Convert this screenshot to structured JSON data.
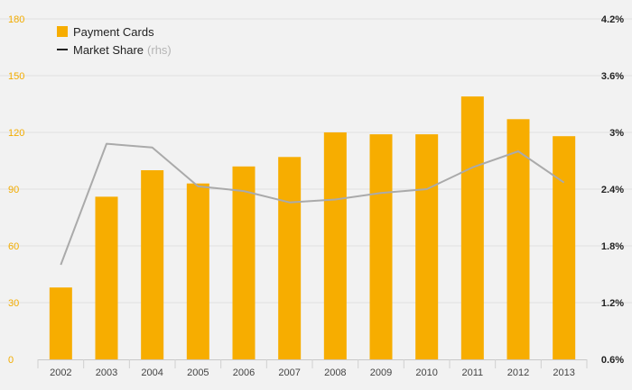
{
  "chart_data": {
    "type": "bar",
    "categories": [
      "2002",
      "2003",
      "2004",
      "2005",
      "2006",
      "2007",
      "2008",
      "2009",
      "2010",
      "2011",
      "2012",
      "2013"
    ],
    "series": [
      {
        "name": "Payment Cards",
        "type": "bar",
        "axis": "left",
        "color": "#f7ad00",
        "values": [
          38,
          86,
          100,
          93,
          102,
          107,
          120,
          119,
          119,
          139,
          127,
          118
        ]
      },
      {
        "name": "Market Share",
        "name_suffix": "(rhs)",
        "type": "line",
        "axis": "right",
        "color": "#aaaaaa",
        "values": [
          1.6,
          2.88,
          2.84,
          2.43,
          2.38,
          2.26,
          2.29,
          2.36,
          2.4,
          2.63,
          2.8,
          2.47
        ]
      }
    ],
    "y_left": {
      "ylim": [
        0,
        180
      ],
      "ticks": [
        0,
        30,
        60,
        90,
        120,
        150,
        180
      ],
      "tick_labels": [
        "0",
        "30",
        "60",
        "90",
        "120",
        "150",
        "180"
      ],
      "color": "#f2ac00"
    },
    "y_right": {
      "ylim": [
        0.6,
        4.2
      ],
      "ticks": [
        0.6,
        1.2,
        1.8,
        2.4,
        3.0,
        3.6,
        4.2
      ],
      "tick_labels": [
        "0.6%",
        "1.2%",
        "1.8%",
        "2.4%",
        "3%",
        "3.6%",
        "4.2%"
      ]
    },
    "grid": true,
    "legend_position": "top-left",
    "title": "",
    "xlabel": "",
    "ylabel": ""
  }
}
